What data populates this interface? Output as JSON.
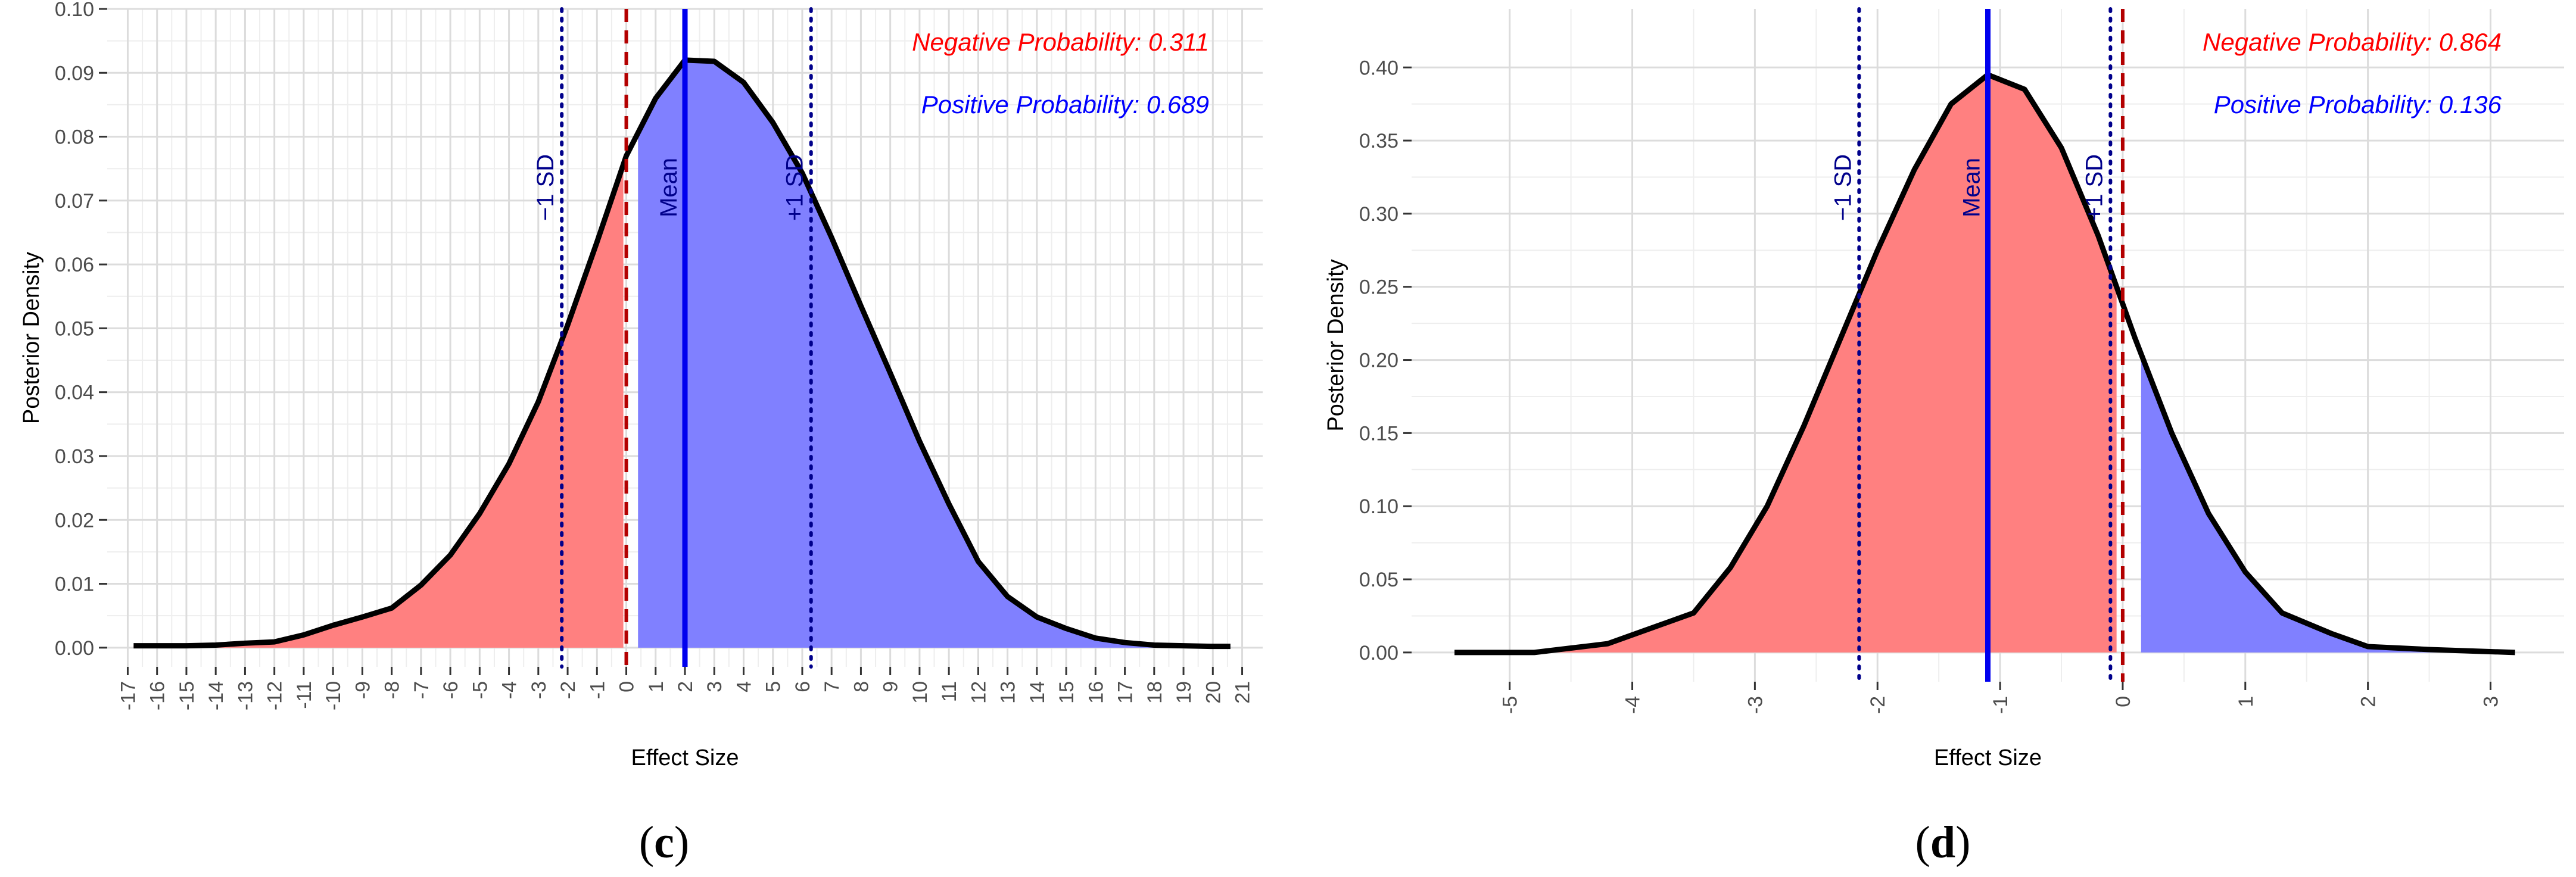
{
  "chart_data": [
    {
      "panel": "c",
      "type": "area",
      "xlabel": "Effect Size",
      "ylabel": "Posterior Density",
      "xlim": [
        -17.7,
        21.7
      ],
      "ylim": [
        -0.003,
        0.1
      ],
      "x_ticks": [
        -17,
        -16,
        -15,
        -14,
        -13,
        -12,
        -11,
        -10,
        -9,
        -8,
        -7,
        -6,
        -5,
        -4,
        -3,
        -2,
        -1,
        0,
        1,
        2,
        3,
        4,
        5,
        6,
        7,
        8,
        9,
        10,
        11,
        12,
        13,
        14,
        15,
        16,
        17,
        18,
        19,
        20,
        21
      ],
      "y_ticks": [
        0.0,
        0.01,
        0.02,
        0.03,
        0.04,
        0.05,
        0.06,
        0.07,
        0.08,
        0.09,
        0.1
      ],
      "y_tick_labels": [
        "0.00",
        "0.01",
        "0.02",
        "0.03",
        "0.04",
        "0.05",
        "0.06",
        "0.07",
        "0.08",
        "0.09",
        "0.10"
      ],
      "grid": true,
      "x": [
        -16.8,
        -15.0,
        -14.0,
        -13.0,
        -12.0,
        -11.0,
        -10.0,
        -9.0,
        -8.0,
        -7.0,
        -6.0,
        -5.0,
        -4.0,
        -3.0,
        -2.0,
        -1.0,
        0.0,
        1.0,
        2.0,
        3.0,
        4.0,
        5.0,
        6.0,
        7.0,
        8.0,
        9.0,
        10.0,
        11.0,
        12.0,
        13.0,
        14.0,
        15.0,
        16.0,
        17.0,
        18.0,
        19.0,
        20.0,
        20.6
      ],
      "y": [
        0.0003,
        0.0003,
        0.0004,
        0.0007,
        0.0009,
        0.002,
        0.0035,
        0.0048,
        0.0062,
        0.0098,
        0.0145,
        0.021,
        0.0288,
        0.0385,
        0.0505,
        0.0635,
        0.077,
        0.086,
        0.092,
        0.0918,
        0.0885,
        0.0822,
        0.0743,
        0.0642,
        0.0535,
        0.043,
        0.0323,
        0.0225,
        0.0135,
        0.008,
        0.0048,
        0.003,
        0.0015,
        0.0008,
        0.0004,
        0.0003,
        0.0002,
        0.0002
      ],
      "negative_region": [
        -16.8,
        -0.1
      ],
      "positive_region": [
        0.4,
        20.6
      ],
      "mean": 2.0,
      "minus_1sd": -2.2,
      "plus_1sd": 6.3,
      "zero_line": 0,
      "mean_label": "Mean",
      "minus_1sd_label": "−1 SD",
      "plus_1sd_label": "+1 SD",
      "negative_probability_text": "Negative Probability: 0.311",
      "positive_probability_text": "Positive Probability: 0.689",
      "caption": "(c)"
    },
    {
      "panel": "d",
      "type": "area",
      "xlabel": "Effect Size",
      "ylabel": "Posterior Density",
      "xlim": [
        -5.8,
        3.6
      ],
      "ylim": [
        -0.02,
        0.44
      ],
      "x_ticks": [
        -5,
        -4,
        -3,
        -2,
        -1,
        0,
        1,
        2,
        3
      ],
      "y_ticks": [
        0.0,
        0.05,
        0.1,
        0.15,
        0.2,
        0.25,
        0.3,
        0.35,
        0.4
      ],
      "y_tick_labels": [
        "0.00",
        "0.05",
        "0.10",
        "0.15",
        "0.20",
        "0.25",
        "0.30",
        "0.35",
        "0.40"
      ],
      "grid": true,
      "x": [
        -5.45,
        -4.8,
        -4.5,
        -4.2,
        -3.9,
        -3.5,
        -3.2,
        -2.9,
        -2.6,
        -2.3,
        -2.0,
        -1.7,
        -1.4,
        -1.1,
        -0.8,
        -0.5,
        -0.2,
        0.1,
        0.4,
        0.7,
        1.0,
        1.3,
        1.7,
        2.0,
        2.5,
        3.2
      ],
      "y": [
        0.0,
        0.0,
        0.003,
        0.006,
        0.015,
        0.027,
        0.058,
        0.1,
        0.155,
        0.215,
        0.275,
        0.33,
        0.375,
        0.395,
        0.385,
        0.345,
        0.285,
        0.215,
        0.15,
        0.095,
        0.055,
        0.027,
        0.013,
        0.004,
        0.002,
        0.0
      ],
      "negative_region": [
        -5.45,
        -0.05
      ],
      "positive_region": [
        0.15,
        3.2
      ],
      "mean": -1.1,
      "minus_1sd": -2.15,
      "plus_1sd": -0.1,
      "zero_line": 0,
      "mean_label": "Mean",
      "minus_1sd_label": "−1 SD",
      "plus_1sd_label": "+1 SD",
      "negative_probability_text": "Negative Probability: 0.864",
      "positive_probability_text": "Positive Probability: 0.136",
      "caption": "(d)"
    }
  ],
  "captions": {
    "c_open": "(",
    "c_letter": "c",
    "c_close": ")",
    "d_open": "(",
    "d_letter": "d",
    "d_close": ")"
  },
  "colors": {
    "negative_fill": "#ff8080",
    "positive_fill": "#8080ff",
    "mean_line": "#0000ee",
    "zero_line": "#b30000",
    "sd_line": "#00008b",
    "negative_text": "#ff0000",
    "positive_text": "#0000ff",
    "grid_major": "#dcdcdc",
    "grid_minor": "#eeeeee",
    "curve": "#000000"
  }
}
